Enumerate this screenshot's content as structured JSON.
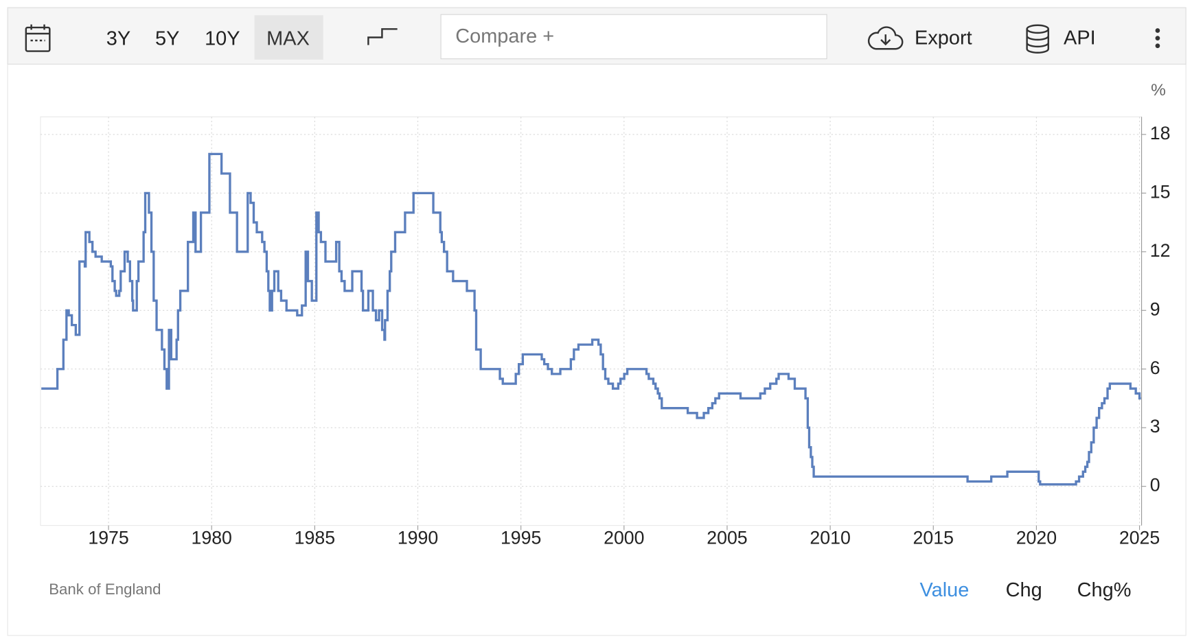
{
  "toolbar": {
    "ranges": [
      "3Y",
      "5Y",
      "10Y",
      "MAX"
    ],
    "active_range": "MAX",
    "compare": "Compare +",
    "export": "Export",
    "api": "API"
  },
  "chart_data": {
    "type": "line",
    "step": true,
    "unit": "%",
    "source": "Bank of England",
    "color": "#5b7fbd",
    "grid": true,
    "x": [
      1971.74,
      1972.52,
      1972.81,
      1972.96,
      1973.07,
      1973.22,
      1973.41,
      1973.59,
      1973.85,
      1973.89,
      1974.07,
      1974.22,
      1974.37,
      1974.67,
      1975.11,
      1975.19,
      1975.3,
      1975.37,
      1975.52,
      1975.59,
      1975.78,
      1975.93,
      1976.04,
      1976.15,
      1976.19,
      1976.37,
      1976.45,
      1976.7,
      1976.78,
      1976.96,
      1977.08,
      1977.19,
      1977.33,
      1977.59,
      1977.71,
      1977.82,
      1977.93,
      1978.04,
      1978.3,
      1978.37,
      1978.48,
      1978.85,
      1979.11,
      1979.22,
      1979.48,
      1979.89,
      1980.48,
      1980.89,
      1981.23,
      1981.75,
      1981.89,
      1982.04,
      1982.19,
      1982.45,
      1982.56,
      1982.67,
      1982.75,
      1982.82,
      1982.93,
      1983.04,
      1983.23,
      1983.37,
      1983.63,
      1984.15,
      1984.38,
      1984.56,
      1984.67,
      1984.86,
      1985.08,
      1985.19,
      1985.3,
      1985.52,
      1986.04,
      1986.19,
      1986.3,
      1986.45,
      1986.82,
      1987.27,
      1987.34,
      1987.6,
      1987.82,
      1987.97,
      1988.12,
      1988.27,
      1988.38,
      1988.41,
      1988.53,
      1988.64,
      1988.71,
      1988.9,
      1989.38,
      1989.79,
      1990.75,
      1991.09,
      1991.16,
      1991.27,
      1991.42,
      1991.71,
      1992.38,
      1992.75,
      1992.83,
      1993.05,
      1993.98,
      1994.12,
      1994.75,
      1994.9,
      1995.09,
      1996.01,
      1996.13,
      1996.31,
      1996.5,
      1996.91,
      1997.42,
      1997.57,
      1997.79,
      1998.46,
      1998.76,
      1998.87,
      1998.98,
      1999.09,
      1999.24,
      1999.46,
      1999.72,
      1999.83,
      2000.01,
      2000.16,
      2001.09,
      2001.2,
      2001.42,
      2001.53,
      2001.64,
      2001.72,
      2001.83,
      2003.09,
      2003.54,
      2003.87,
      2004.09,
      2004.28,
      2004.43,
      2004.61,
      2005.65,
      2006.61,
      2006.83,
      2007.09,
      2007.39,
      2007.5,
      2007.98,
      2008.28,
      2008.8,
      2008.91,
      2008.98,
      2009.06,
      2009.13,
      2009.2,
      2016.66,
      2017.81,
      2018.59,
      2020.11,
      2020.18,
      2021.92,
      2022.07,
      2022.26,
      2022.37,
      2022.47,
      2022.55,
      2022.66,
      2022.78,
      2022.92,
      2023.04,
      2023.18,
      2023.3,
      2023.45,
      2023.56,
      2024.56,
      2024.82,
      2025.0,
      2025.07
    ],
    "values": [
      5.0,
      6.0,
      7.5,
      9.0,
      8.75,
      8.25,
      7.75,
      11.5,
      11.25,
      13.0,
      12.5,
      12.0,
      11.75,
      11.5,
      11.25,
      10.5,
      10.0,
      9.75,
      10.0,
      11.0,
      12.0,
      11.5,
      10.5,
      9.5,
      9.0,
      10.5,
      11.5,
      13.0,
      15.0,
      14.0,
      12.0,
      9.5,
      8.0,
      7.0,
      6.0,
      5.0,
      8.0,
      6.5,
      7.5,
      9.0,
      10.0,
      12.5,
      14.0,
      12.0,
      14.0,
      17.0,
      16.0,
      14.0,
      12.0,
      15.0,
      14.5,
      13.5,
      13.0,
      12.5,
      12.0,
      11.0,
      10.0,
      9.0,
      10.0,
      11.0,
      10.0,
      9.5,
      9.0,
      8.75,
      9.25,
      12.0,
      10.5,
      9.5,
      14.0,
      13.0,
      12.5,
      11.5,
      12.5,
      11.0,
      10.5,
      10.0,
      11.0,
      10.0,
      9.0,
      10.0,
      9.0,
      8.5,
      9.0,
      8.0,
      7.5,
      8.5,
      10.0,
      11.0,
      12.0,
      13.0,
      14.0,
      15.0,
      14.0,
      13.0,
      12.5,
      12.0,
      11.0,
      10.5,
      10.0,
      9.0,
      7.0,
      6.0,
      5.5,
      5.25,
      5.75,
      6.25,
      6.75,
      6.5,
      6.25,
      6.0,
      5.75,
      6.0,
      6.5,
      7.0,
      7.25,
      7.5,
      7.25,
      6.75,
      6.0,
      5.5,
      5.25,
      5.0,
      5.25,
      5.5,
      5.75,
      6.0,
      5.75,
      5.5,
      5.25,
      5.0,
      4.75,
      4.5,
      4.0,
      3.75,
      3.5,
      3.75,
      4.0,
      4.25,
      4.5,
      4.75,
      4.5,
      4.75,
      5.0,
      5.25,
      5.5,
      5.75,
      5.5,
      5.0,
      4.5,
      3.0,
      2.0,
      1.5,
      1.0,
      0.5,
      0.25,
      0.5,
      0.75,
      0.25,
      0.1,
      0.25,
      0.5,
      0.75,
      1.0,
      1.25,
      1.75,
      2.25,
      3.0,
      3.5,
      4.0,
      4.25,
      4.5,
      5.0,
      5.25,
      5.0,
      4.75,
      4.5,
      4.5
    ],
    "xlim": [
      1971.7,
      2025.1
    ],
    "xticks": [
      1975,
      1980,
      1985,
      1990,
      1995,
      2000,
      2005,
      2010,
      2015,
      2020,
      2025
    ],
    "ylim": [
      -2,
      18.9
    ],
    "yticks": [
      0,
      3,
      6,
      9,
      12,
      15,
      18
    ]
  },
  "footer": {
    "views": [
      "Value",
      "Chg",
      "Chg%"
    ],
    "active_view": "Value"
  }
}
